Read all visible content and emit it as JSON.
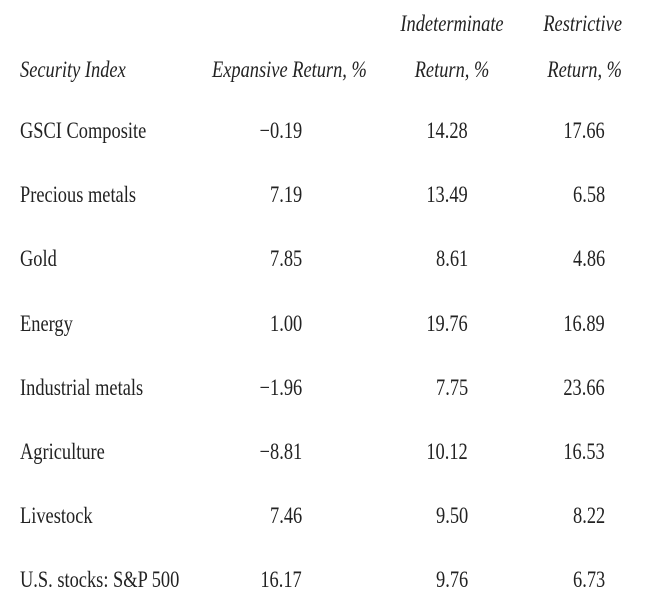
{
  "table": {
    "header": [
      "Security Index",
      "Expansive Return, %",
      "Indeterminate Return, %",
      "Restrictive Return, %"
    ],
    "rows": [
      [
        "GSCI Composite",
        "−0.19",
        "14.28",
        "17.66"
      ],
      [
        "Precious metals",
        "7.19",
        "13.49",
        "6.58"
      ],
      [
        "Gold",
        "7.85",
        "8.61",
        "4.86"
      ],
      [
        "Energy",
        "1.00",
        "19.76",
        "16.89"
      ],
      [
        "Industrial metals",
        "−1.96",
        "7.75",
        "23.66"
      ],
      [
        "Agriculture",
        "−8.81",
        "10.12",
        "16.53"
      ],
      [
        "Livestock",
        "7.46",
        "9.50",
        "8.22"
      ],
      [
        "U.S. stocks: S&P 500",
        "16.17",
        "9.76",
        "6.73"
      ]
    ]
  }
}
